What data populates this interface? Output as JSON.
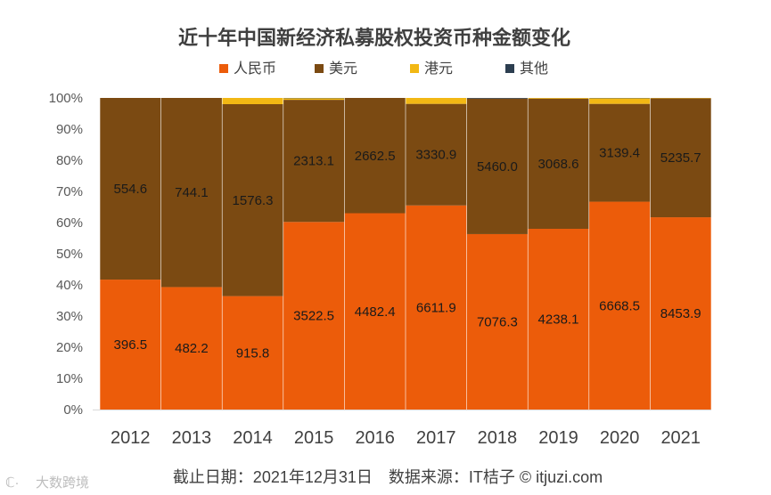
{
  "chart_data": {
    "type": "bar",
    "stacked": "percent",
    "title": "近十年中国新经济私募股权投资币种金额变化",
    "categories": [
      "2012",
      "2013",
      "2014",
      "2015",
      "2016",
      "2017",
      "2018",
      "2019",
      "2020",
      "2021"
    ],
    "series": [
      {
        "name": "人民币",
        "color": "#ec5c0a",
        "pct": [
          41.7,
          39.3,
          36.4,
          60.2,
          63.0,
          65.5,
          56.3,
          58.0,
          66.7,
          61.7
        ],
        "labels": [
          "396.5",
          "482.2",
          "915.8",
          "3522.5",
          "4482.4",
          "6611.9",
          "7076.3",
          "4238.1",
          "6668.5",
          "8453.9"
        ]
      },
      {
        "name": "美元",
        "color": "#7b4a12",
        "pct": [
          58.3,
          60.7,
          61.6,
          39.2,
          37.0,
          32.6,
          43.5,
          41.8,
          31.4,
          38.2
        ],
        "labels": [
          "554.6",
          "744.1",
          "1576.3",
          "2313.1",
          "2662.5",
          "3330.9",
          "5460.0",
          "3068.6",
          "3139.4",
          "5235.7"
        ]
      },
      {
        "name": "港元",
        "color": "#f2b814",
        "pct": [
          0,
          0,
          2.0,
          0.5,
          0,
          1.9,
          0,
          0.2,
          1.8,
          0.1
        ],
        "labels": []
      },
      {
        "name": "其他",
        "color": "#2c3e50",
        "pct": [
          0,
          0,
          0,
          0.1,
          0,
          0,
          0.2,
          0,
          0.1,
          0
        ],
        "labels": []
      }
    ],
    "yticks": [
      "0%",
      "10%",
      "20%",
      "30%",
      "40%",
      "50%",
      "60%",
      "70%",
      "80%",
      "90%",
      "100%"
    ],
    "ylim": [
      0,
      100
    ],
    "legend_position": "top"
  },
  "footer": "截止日期：2021年12月31日　数据来源：IT桔子 © itjuzi.com",
  "watermark": "大数跨境"
}
